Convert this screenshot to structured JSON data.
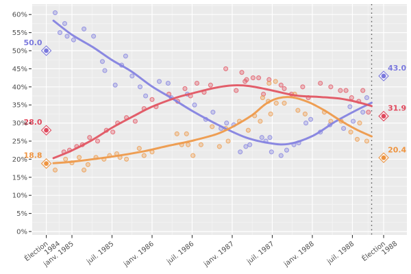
{
  "page": {
    "background": "#ffffff",
    "plot_background": "#ebebeb",
    "grid_major": "#ffffff",
    "grid_minor": "#f4f4f4",
    "axis_text_color": "#4d4d4d",
    "tick_color": "#333333",
    "event_line_color": "#5a5a5a"
  },
  "chart_data": {
    "type": "scatter",
    "subtype": "polls-with-loess-smooth",
    "title": "",
    "xlabel": "",
    "ylabel": "",
    "grid": true,
    "legend": "none",
    "x_axis": {
      "range": [
        1984.504,
        1989.18
      ],
      "ticks": [
        {
          "t": 1984.68,
          "lines": [
            "Élection",
            "1984"
          ]
        },
        {
          "t": 1985.0,
          "lines": [
            "janv. 1985"
          ]
        },
        {
          "t": 1985.5,
          "lines": [
            "juil. 1985"
          ]
        },
        {
          "t": 1986.0,
          "lines": [
            "janv. 1986"
          ]
        },
        {
          "t": 1986.5,
          "lines": [
            "juil. 1986"
          ]
        },
        {
          "t": 1987.0,
          "lines": [
            "janv. 1987"
          ]
        },
        {
          "t": 1987.5,
          "lines": [
            "juil. 1987"
          ]
        },
        {
          "t": 1988.0,
          "lines": [
            "janv. 1988"
          ]
        },
        {
          "t": 1988.5,
          "lines": [
            "juil. 1988"
          ]
        },
        {
          "t": 1988.89,
          "lines": [
            "Élection",
            "1988"
          ]
        }
      ]
    },
    "y_axis": {
      "range": [
        -0.95,
        62.88
      ],
      "tick_values": [
        0,
        5,
        10,
        15,
        20,
        25,
        30,
        35,
        40,
        45,
        50,
        55,
        60
      ],
      "tick_labels": [
        "0%",
        "5%",
        "10%",
        "15%",
        "20%",
        "25%",
        "30%",
        "35%",
        "40%",
        "45%",
        "50%",
        "55%",
        "60%"
      ]
    },
    "event_line_t": 1988.74,
    "series": [
      {
        "name": "blue",
        "color": "#8583e0",
        "label_color": "#7b79dd",
        "result_1984": {
          "t": 1984.68,
          "v": 50.0,
          "label": "50.0"
        },
        "result_1988": {
          "t": 1988.89,
          "v": 43.0,
          "label": "43.0"
        },
        "trend": [
          [
            1984.77,
            58.3
          ],
          [
            1985.0,
            54.4
          ],
          [
            1985.26,
            51.0
          ],
          [
            1985.5,
            47.4
          ],
          [
            1985.74,
            44.3
          ],
          [
            1986.0,
            40.1
          ],
          [
            1986.25,
            36.8
          ],
          [
            1986.52,
            33.1
          ],
          [
            1986.85,
            29.2
          ],
          [
            1987.17,
            26.0
          ],
          [
            1987.45,
            24.5
          ],
          [
            1987.7,
            24.2
          ],
          [
            1988.0,
            26.4
          ],
          [
            1988.28,
            30.3
          ],
          [
            1988.52,
            33.2
          ],
          [
            1988.74,
            35.6
          ]
        ],
        "polls": [
          [
            1984.79,
            60.5
          ],
          [
            1984.85,
            55.0
          ],
          [
            1984.91,
            57.5
          ],
          [
            1984.94,
            54.0
          ],
          [
            1985.02,
            53.0
          ],
          [
            1985.15,
            56.0
          ],
          [
            1985.27,
            54.0
          ],
          [
            1985.38,
            47.0
          ],
          [
            1985.41,
            44.5
          ],
          [
            1985.54,
            40.5
          ],
          [
            1985.62,
            46.0
          ],
          [
            1985.67,
            48.5
          ],
          [
            1985.75,
            43.0
          ],
          [
            1985.85,
            40.0
          ],
          [
            1985.92,
            37.5
          ],
          [
            1986.09,
            41.5
          ],
          [
            1986.2,
            41.0
          ],
          [
            1986.24,
            37.0
          ],
          [
            1986.44,
            38.0
          ],
          [
            1986.53,
            35.0
          ],
          [
            1986.67,
            31.0
          ],
          [
            1986.76,
            33.0
          ],
          [
            1986.86,
            28.5
          ],
          [
            1986.93,
            30.0
          ],
          [
            1987.02,
            29.5
          ],
          [
            1987.1,
            22.0
          ],
          [
            1987.17,
            23.5
          ],
          [
            1987.22,
            24.0
          ],
          [
            1987.37,
            26.0
          ],
          [
            1987.42,
            25.0
          ],
          [
            1987.47,
            26.0
          ],
          [
            1987.49,
            22.0
          ],
          [
            1987.61,
            21.0
          ],
          [
            1987.68,
            22.5
          ],
          [
            1987.77,
            24.0
          ],
          [
            1987.83,
            24.5
          ],
          [
            1987.92,
            30.0
          ],
          [
            1987.98,
            31.0
          ],
          [
            1988.1,
            27.5
          ],
          [
            1988.22,
            29.5
          ],
          [
            1988.39,
            28.5
          ],
          [
            1988.47,
            34.5
          ],
          [
            1988.51,
            30.5
          ],
          [
            1988.63,
            33.0
          ],
          [
            1988.68,
            37.0
          ]
        ]
      },
      {
        "name": "red",
        "color": "#e15663",
        "label_color": "#e04a5e",
        "result_1984": {
          "t": 1984.68,
          "v": 28.0,
          "label": "28.0"
        },
        "result_1988": {
          "t": 1988.89,
          "v": 31.9,
          "label": "31.9"
        },
        "trend": [
          [
            1984.77,
            20.3
          ],
          [
            1985.0,
            22.4
          ],
          [
            1985.26,
            25.4
          ],
          [
            1985.5,
            28.7
          ],
          [
            1985.76,
            31.8
          ],
          [
            1986.0,
            34.5
          ],
          [
            1986.3,
            37.0
          ],
          [
            1986.52,
            38.3
          ],
          [
            1986.78,
            39.7
          ],
          [
            1987.0,
            40.4
          ],
          [
            1987.22,
            40.2
          ],
          [
            1987.5,
            39.0
          ],
          [
            1987.8,
            37.6
          ],
          [
            1988.1,
            37.2
          ],
          [
            1988.36,
            36.7
          ],
          [
            1988.56,
            35.8
          ],
          [
            1988.74,
            34.7
          ]
        ],
        "polls": [
          [
            1984.9,
            22.0
          ],
          [
            1984.97,
            22.5
          ],
          [
            1985.06,
            23.5
          ],
          [
            1985.13,
            24.0
          ],
          [
            1985.22,
            26.0
          ],
          [
            1985.32,
            25.0
          ],
          [
            1985.43,
            28.0
          ],
          [
            1985.51,
            27.5
          ],
          [
            1985.57,
            30.0
          ],
          [
            1985.68,
            31.5
          ],
          [
            1985.79,
            30.5
          ],
          [
            1985.9,
            34.0
          ],
          [
            1986.0,
            36.5
          ],
          [
            1986.05,
            34.5
          ],
          [
            1986.21,
            38.0
          ],
          [
            1986.32,
            36.0
          ],
          [
            1986.41,
            39.5
          ],
          [
            1986.48,
            37.5
          ],
          [
            1986.56,
            41.0
          ],
          [
            1986.65,
            38.5
          ],
          [
            1986.73,
            40.5
          ],
          [
            1986.92,
            45.0
          ],
          [
            1987.05,
            39.0
          ],
          [
            1987.12,
            44.0
          ],
          [
            1987.16,
            41.5
          ],
          [
            1987.18,
            42.0
          ],
          [
            1987.26,
            42.5
          ],
          [
            1987.33,
            42.5
          ],
          [
            1987.39,
            38.0
          ],
          [
            1987.46,
            42.0
          ],
          [
            1987.61,
            40.5
          ],
          [
            1987.65,
            39.5
          ],
          [
            1987.74,
            38.0
          ],
          [
            1987.88,
            40.0
          ],
          [
            1987.95,
            37.0
          ],
          [
            1988.1,
            41.0
          ],
          [
            1988.23,
            40.0
          ],
          [
            1988.35,
            39.0
          ],
          [
            1988.42,
            39.0
          ],
          [
            1988.49,
            37.0
          ],
          [
            1988.58,
            36.0
          ],
          [
            1988.63,
            39.0
          ],
          [
            1988.7,
            33.0
          ]
        ]
      },
      {
        "name": "orange",
        "color": "#ee9a4b",
        "label_color": "#ee9440",
        "result_1984": {
          "t": 1984.68,
          "v": 18.8,
          "label": "18.8"
        },
        "result_1988": {
          "t": 1988.89,
          "v": 20.4,
          "label": "20.4"
        },
        "trend": [
          [
            1984.77,
            18.9
          ],
          [
            1985.0,
            19.3
          ],
          [
            1985.5,
            20.7
          ],
          [
            1985.9,
            22.2
          ],
          [
            1986.2,
            23.7
          ],
          [
            1986.5,
            25.1
          ],
          [
            1986.8,
            26.9
          ],
          [
            1987.0,
            28.9
          ],
          [
            1987.25,
            32.2
          ],
          [
            1987.42,
            35.3
          ],
          [
            1987.58,
            36.9
          ],
          [
            1987.75,
            37.1
          ],
          [
            1987.95,
            35.8
          ],
          [
            1988.15,
            33.5
          ],
          [
            1988.35,
            30.7
          ],
          [
            1988.55,
            28.2
          ],
          [
            1988.74,
            26.3
          ]
        ],
        "polls": [
          [
            1984.79,
            17.0
          ],
          [
            1984.92,
            20.0
          ],
          [
            1985.0,
            19.0
          ],
          [
            1985.09,
            20.5
          ],
          [
            1985.15,
            17.0
          ],
          [
            1985.2,
            18.5
          ],
          [
            1985.3,
            20.5
          ],
          [
            1985.4,
            20.0
          ],
          [
            1985.47,
            21.0
          ],
          [
            1985.56,
            21.5
          ],
          [
            1985.6,
            20.5
          ],
          [
            1985.68,
            20.0
          ],
          [
            1985.84,
            23.0
          ],
          [
            1985.9,
            21.0
          ],
          [
            1986.0,
            22.0
          ],
          [
            1986.31,
            27.0
          ],
          [
            1986.37,
            24.0
          ],
          [
            1986.43,
            27.0
          ],
          [
            1986.45,
            24.0
          ],
          [
            1986.51,
            21.0
          ],
          [
            1986.61,
            24.0
          ],
          [
            1986.75,
            29.0
          ],
          [
            1986.84,
            23.5
          ],
          [
            1986.92,
            28.5
          ],
          [
            1986.95,
            25.0
          ],
          [
            1987.09,
            30.5
          ],
          [
            1987.2,
            28.0
          ],
          [
            1987.28,
            32.0
          ],
          [
            1987.35,
            30.5
          ],
          [
            1987.38,
            37.0
          ],
          [
            1987.45,
            36.0
          ],
          [
            1987.46,
            41.0
          ],
          [
            1987.48,
            32.5
          ],
          [
            1987.54,
            41.5
          ],
          [
            1987.55,
            35.5
          ],
          [
            1987.65,
            35.5
          ],
          [
            1987.78,
            38.0
          ],
          [
            1987.82,
            33.5
          ],
          [
            1987.91,
            32.5
          ],
          [
            1988.15,
            33.0
          ],
          [
            1988.23,
            30.5
          ],
          [
            1988.36,
            30.5
          ],
          [
            1988.48,
            27.5
          ],
          [
            1988.56,
            25.5
          ],
          [
            1988.59,
            30.0
          ],
          [
            1988.68,
            25.0
          ]
        ]
      }
    ]
  }
}
